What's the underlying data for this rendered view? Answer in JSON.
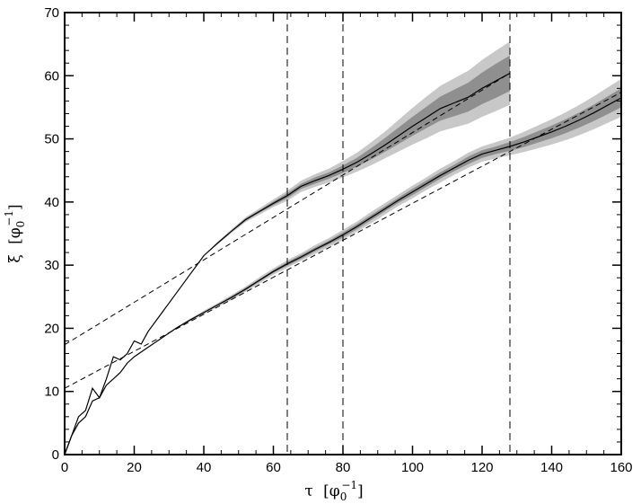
{
  "chart_data": {
    "type": "line",
    "xlim": [
      0,
      160
    ],
    "ylim": [
      0,
      70
    ],
    "x_ticks": [
      0,
      20,
      40,
      60,
      80,
      100,
      120,
      140,
      160
    ],
    "y_ticks": [
      0,
      10,
      20,
      30,
      40,
      50,
      60,
      70
    ],
    "x_tick_labels": [
      "0",
      "20",
      "40",
      "60",
      "80",
      "100",
      "120",
      "140",
      "160"
    ],
    "y_tick_labels": [
      "0",
      "10",
      "20",
      "30",
      "40",
      "50",
      "60",
      "70"
    ],
    "xlabel": {
      "symbol": "τ",
      "open": "[",
      "base": "φ",
      "sub": "0",
      "sup": "−1",
      "close": "]"
    },
    "ylabel": {
      "symbol": "ξ",
      "open": "[",
      "base": "φ",
      "sub": "0",
      "sup": "−1",
      "close": "]"
    },
    "grid": false,
    "vertical_lines": [
      64,
      80,
      128
    ],
    "colors": {
      "outer_band": "#c8c8c8",
      "inner_band": "#8f8f8f",
      "line": "#000000"
    },
    "series": [
      {
        "x": [
          0,
          2,
          4,
          6,
          8,
          10,
          12,
          14,
          16,
          18,
          20,
          22,
          24,
          26,
          28,
          30,
          32,
          34,
          36,
          38,
          40,
          44,
          48,
          52,
          56,
          60,
          64,
          68,
          72,
          76,
          80,
          84,
          88,
          92,
          96,
          100,
          104,
          108,
          112,
          116,
          120,
          124,
          128
        ],
        "y": [
          0,
          3,
          6,
          7,
          10.5,
          9,
          12,
          15.5,
          15,
          16,
          18,
          17.5,
          19.5,
          21,
          22.5,
          24,
          25.5,
          27,
          28.5,
          30,
          31.5,
          33.5,
          35.4,
          37.2,
          38.5,
          39.8,
          41,
          42.5,
          43.4,
          44.2,
          45.2,
          46.3,
          47.6,
          49,
          50.5,
          52,
          53.4,
          54.8,
          55.7,
          56.6,
          58,
          59.2,
          60.4
        ],
        "band_outer": [
          0,
          0,
          0,
          0,
          0,
          0,
          0,
          0,
          0,
          0,
          0,
          0,
          0,
          0,
          0,
          0,
          0,
          0,
          0,
          0,
          0,
          0.2,
          0.3,
          0.4,
          0.5,
          0.6,
          0.8,
          0.9,
          1.0,
          1.1,
          1.3,
          1.5,
          1.8,
          2.1,
          2.5,
          2.9,
          3.3,
          3.6,
          3.9,
          4.2,
          4.5,
          4.8,
          5.0
        ],
        "band_inner": [
          0,
          0,
          0,
          0,
          0,
          0,
          0,
          0,
          0,
          0,
          0,
          0,
          0,
          0,
          0,
          0,
          0,
          0,
          0,
          0,
          0,
          0.1,
          0.1,
          0.2,
          0.2,
          0.3,
          0.4,
          0.4,
          0.5,
          0.5,
          0.6,
          0.7,
          0.9,
          1.1,
          1.3,
          1.5,
          1.7,
          1.9,
          2.1,
          2.3,
          2.5,
          2.7,
          2.8
        ],
        "fit": {
          "intercept": 17.4,
          "slope": 0.336
        }
      },
      {
        "x": [
          0,
          2,
          4,
          6,
          8,
          10,
          12,
          14,
          16,
          18,
          20,
          24,
          28,
          32,
          36,
          40,
          44,
          48,
          52,
          56,
          60,
          64,
          68,
          72,
          76,
          80,
          84,
          88,
          92,
          96,
          100,
          104,
          108,
          112,
          116,
          120,
          124,
          128,
          132,
          136,
          140,
          144,
          148,
          152,
          156,
          160
        ],
        "y": [
          0,
          3,
          5,
          6,
          8.5,
          9,
          11,
          12,
          13,
          14.5,
          15.5,
          17,
          18.5,
          20,
          21.3,
          22.5,
          23.7,
          24.9,
          26.2,
          27.6,
          29,
          30.2,
          31.3,
          32.5,
          33.6,
          34.8,
          36.1,
          37.5,
          38.9,
          40.3,
          41.6,
          42.9,
          44.2,
          45.4,
          46.6,
          47.6,
          48.2,
          48.8,
          49.5,
          50.3,
          51.1,
          52,
          53,
          54.1,
          55.3,
          56.5
        ],
        "band_outer": [
          0,
          0,
          0,
          0,
          0,
          0,
          0,
          0,
          0,
          0,
          0,
          0,
          0,
          0.1,
          0.2,
          0.3,
          0.3,
          0.4,
          0.4,
          0.5,
          0.5,
          0.6,
          0.6,
          0.7,
          0.7,
          0.8,
          0.8,
          0.9,
          0.9,
          0.9,
          1.0,
          1.0,
          1.1,
          1.1,
          1.2,
          1.2,
          1.3,
          1.4,
          1.6,
          1.8,
          2.0,
          2.2,
          2.4,
          2.6,
          2.8,
          3.0
        ],
        "band_inner": [
          0,
          0,
          0,
          0,
          0,
          0,
          0,
          0,
          0,
          0,
          0,
          0,
          0,
          0.05,
          0.1,
          0.1,
          0.1,
          0.2,
          0.2,
          0.2,
          0.2,
          0.3,
          0.3,
          0.3,
          0.3,
          0.4,
          0.4,
          0.4,
          0.4,
          0.4,
          0.5,
          0.5,
          0.5,
          0.5,
          0.6,
          0.6,
          0.6,
          0.7,
          0.8,
          0.9,
          1.0,
          1.1,
          1.2,
          1.3,
          1.4,
          1.5
        ],
        "fit": {
          "intercept": 10.5,
          "slope": 0.293
        }
      }
    ]
  }
}
